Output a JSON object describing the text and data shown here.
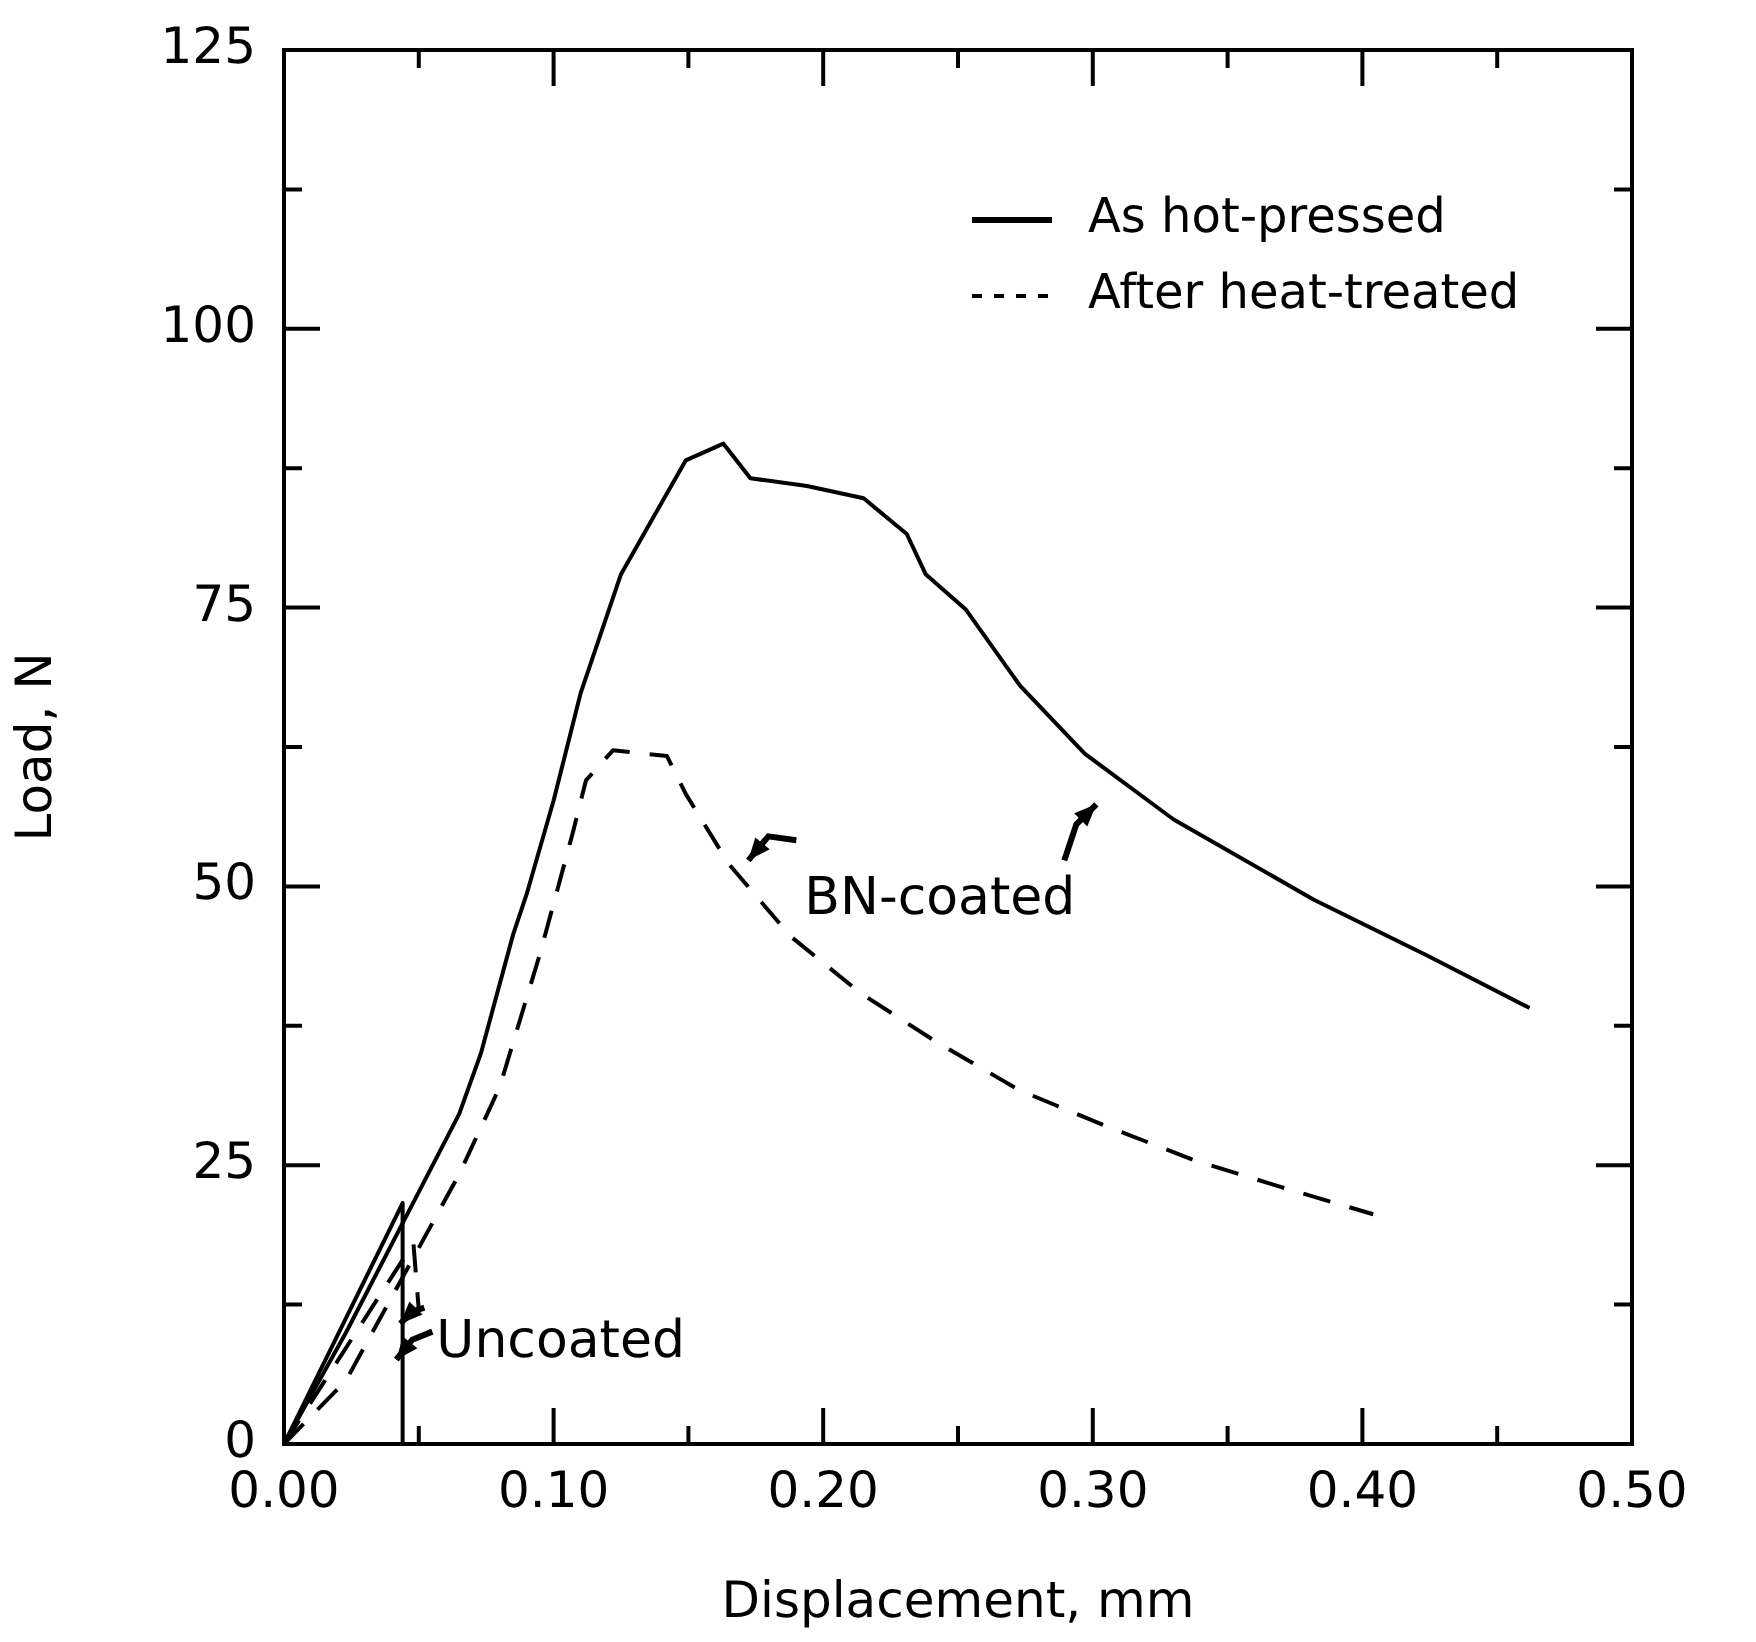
{
  "chart_data": {
    "type": "line",
    "xlabel": "Displacement, mm",
    "ylabel": "Load, N",
    "xlim": [
      0,
      0.5
    ],
    "ylim": [
      0,
      125
    ],
    "xticks": [
      {
        "value": 0,
        "label": "0.00"
      },
      {
        "value": 0.05,
        "label": null
      },
      {
        "value": 0.1,
        "label": "0.10"
      },
      {
        "value": 0.15,
        "label": null
      },
      {
        "value": 0.2,
        "label": "0.20"
      },
      {
        "value": 0.25,
        "label": null
      },
      {
        "value": 0.3,
        "label": "0.30"
      },
      {
        "value": 0.35,
        "label": null
      },
      {
        "value": 0.4,
        "label": "0.40"
      },
      {
        "value": 0.45,
        "label": null
      },
      {
        "value": 0.5,
        "label": "0.50"
      }
    ],
    "yticks": [
      0,
      {
        "value": 12.5,
        "label": null
      },
      25,
      {
        "value": 37.5,
        "label": null
      },
      50,
      {
        "value": 62.5,
        "label": null
      },
      75,
      {
        "value": 87.5,
        "label": null
      },
      100,
      {
        "value": 112.5,
        "label": null
      },
      125
    ],
    "legend": "top right",
    "marker": "none",
    "series": [
      {
        "name": "As hot-pressed",
        "color": "#000000",
        "line_style": "solid",
        "x": [
          0,
          0.023,
          0.065,
          0.073,
          0.085,
          0.09,
          0.1,
          0.11,
          0.125,
          0.149,
          0.163,
          0.173,
          0.194,
          0.215,
          0.231,
          0.238,
          0.253,
          0.273,
          0.297,
          0.33,
          0.382,
          0.424,
          0.462
        ],
        "values": [
          0,
          10,
          29.6,
          35,
          45.7,
          49.3,
          57.7,
          67.3,
          78,
          88.2,
          89.7,
          86.6,
          85.9,
          84.8,
          81.6,
          78,
          74.8,
          68,
          61.9,
          56,
          48.8,
          43.8,
          39.1
        ]
      },
      {
        "name": "After heat-treated",
        "color": "#000000",
        "line_style": "dashed",
        "x": [
          0,
          0.023,
          0.065,
          0.08,
          0.095,
          0.107,
          0.112,
          0.122,
          0.142,
          0.149,
          0.165,
          0.188,
          0.214,
          0.243,
          0.273,
          0.305,
          0.337,
          0.369,
          0.404
        ],
        "values": [
          0,
          5.7,
          24.2,
          32,
          44,
          54.7,
          59.5,
          62.2,
          61.7,
          58.3,
          52,
          45.5,
          40.4,
          35.9,
          31.7,
          28.5,
          25.5,
          23.1,
          20.6
        ]
      },
      {
        "color": "#000000",
        "line_style": "solid",
        "x": [
          0,
          0.044,
          0.044
        ],
        "values": [
          0,
          21.6,
          0
        ]
      },
      {
        "color": "#000000",
        "line_style": "dashed",
        "x": [
          0,
          0.048,
          0.05
        ],
        "values": [
          0,
          18,
          12
        ]
      }
    ],
    "annotations": [
      "BN-coated",
      "Uncoated"
    ]
  }
}
